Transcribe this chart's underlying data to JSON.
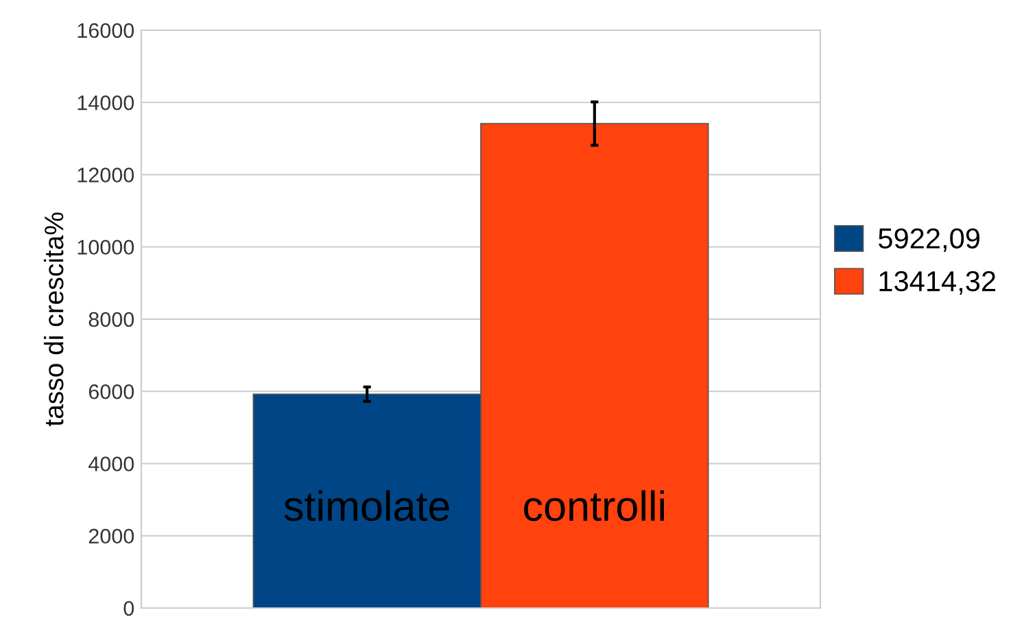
{
  "chart_data": {
    "type": "bar",
    "categories": [
      null
    ],
    "ylabel": "tasso di crescita%",
    "series": [
      {
        "name": "5922,09",
        "color": "#004586",
        "values": [
          5922.09
        ],
        "errors": [
          200
        ]
      },
      {
        "name": "13414,32",
        "color": "#ff420e",
        "values": [
          13414.32
        ],
        "errors": [
          600
        ]
      }
    ],
    "annotations": [
      "stimolate",
      "controlli"
    ],
    "ylim": [
      0,
      16000
    ],
    "yticks": [
      0,
      2000,
      4000,
      6000,
      8000,
      10000,
      12000,
      14000,
      16000
    ],
    "grid": "y",
    "legend": "right"
  }
}
